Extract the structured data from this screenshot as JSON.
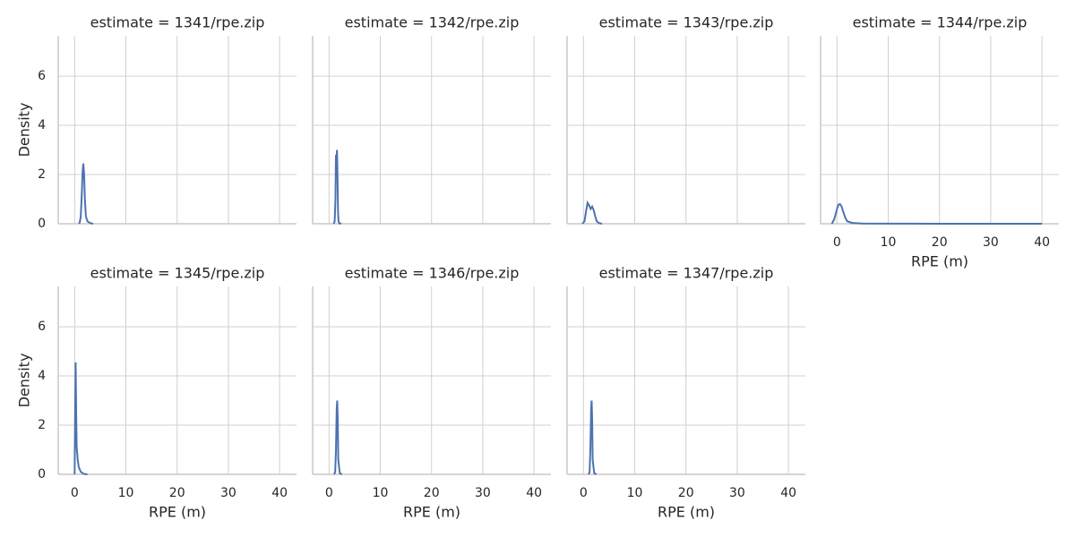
{
  "chart_data": [
    {
      "type": "line",
      "title": "estimate = 1341/rpe.zip",
      "ylabel": "Density",
      "color": "#4c72b0",
      "x": [
        0.8,
        1.0,
        1.2,
        1.4,
        1.55,
        1.7,
        1.85,
        2.0,
        2.2,
        2.5,
        3.0,
        3.6
      ],
      "values": [
        0,
        0.05,
        0.3,
        1.2,
        2.1,
        2.45,
        2.0,
        1.0,
        0.3,
        0.1,
        0.03,
        0
      ],
      "xlim": [
        -3.2,
        43.3
      ],
      "ylim": [
        0,
        7.64
      ],
      "xticks": [
        0,
        10,
        20,
        30,
        40
      ],
      "yticks": [
        0,
        2,
        4,
        6
      ],
      "grid": true
    },
    {
      "type": "line",
      "title": "estimate = 1342/rpe.zip",
      "color": "#4c72b0",
      "x": [
        0.9,
        1.1,
        1.25,
        1.35,
        1.45,
        1.55,
        1.65,
        1.75,
        1.85,
        2.0,
        2.4
      ],
      "values": [
        0,
        0.1,
        1.0,
        2.8,
        2.6,
        3.0,
        2.0,
        0.5,
        0.1,
        0.02,
        0
      ],
      "xlim": [
        -3.2,
        43.3
      ],
      "ylim": [
        0,
        7.64
      ],
      "xticks": [
        0,
        10,
        20,
        30,
        40
      ],
      "yticks": [
        0,
        2,
        4,
        6
      ],
      "grid": true
    },
    {
      "type": "line",
      "title": "estimate = 1343/rpe.zip",
      "color": "#4c72b0",
      "x": [
        -0.2,
        0.2,
        0.5,
        0.8,
        1.1,
        1.4,
        1.7,
        2.0,
        2.3,
        2.6,
        3.0,
        3.6
      ],
      "values": [
        0,
        0.1,
        0.5,
        0.85,
        0.75,
        0.6,
        0.7,
        0.55,
        0.3,
        0.1,
        0.03,
        0
      ],
      "xlim": [
        -3.2,
        43.3
      ],
      "ylim": [
        0,
        7.64
      ],
      "xticks": [
        0,
        10,
        20,
        30,
        40
      ],
      "yticks": [
        0,
        2,
        4,
        6
      ],
      "grid": true
    },
    {
      "type": "line",
      "title": "estimate = 1344/rpe.zip",
      "xlabel": "RPE (m)",
      "color": "#4c72b0",
      "x": [
        -1,
        -0.5,
        0,
        0.3,
        0.6,
        0.9,
        1.2,
        1.6,
        2.0,
        3,
        5,
        10,
        20,
        40
      ],
      "values": [
        0,
        0.2,
        0.6,
        0.78,
        0.8,
        0.7,
        0.5,
        0.25,
        0.1,
        0.03,
        0.01,
        0.005,
        0.002,
        0
      ],
      "xlim": [
        -3.2,
        43.3
      ],
      "ylim": [
        0,
        7.64
      ],
      "xticks": [
        0,
        10,
        20,
        30,
        40
      ],
      "yticks": [
        0,
        2,
        4,
        6
      ],
      "grid": true
    },
    {
      "type": "line",
      "title": "estimate = 1345/rpe.zip",
      "xlabel": "RPE (m)",
      "ylabel": "Density",
      "color": "#4c72b0",
      "x": [
        0,
        0.1,
        0.2,
        0.3,
        0.4,
        0.6,
        0.8,
        1.2,
        1.8,
        2.5
      ],
      "values": [
        0,
        2.5,
        4.55,
        2.5,
        1.1,
        0.6,
        0.3,
        0.1,
        0.02,
        0
      ],
      "xlim": [
        -3.2,
        43.3
      ],
      "ylim": [
        0,
        7.64
      ],
      "xticks": [
        0,
        10,
        20,
        30,
        40
      ],
      "yticks": [
        0,
        2,
        4,
        6
      ],
      "grid": true
    },
    {
      "type": "line",
      "title": "estimate = 1346/rpe.zip",
      "xlabel": "RPE (m)",
      "color": "#4c72b0",
      "x": [
        1.0,
        1.2,
        1.35,
        1.5,
        1.6,
        1.7,
        1.8,
        1.9,
        2.1,
        2.5
      ],
      "values": [
        0,
        0.1,
        1.0,
        2.7,
        3.0,
        2.2,
        0.6,
        0.4,
        0.05,
        0
      ],
      "xlim": [
        -3.2,
        43.3
      ],
      "ylim": [
        0,
        7.64
      ],
      "xticks": [
        0,
        10,
        20,
        30,
        40
      ],
      "yticks": [
        0,
        2,
        4,
        6
      ],
      "grid": true
    },
    {
      "type": "line",
      "title": "estimate = 1347/rpe.zip",
      "xlabel": "RPE (m)",
      "color": "#4c72b0",
      "x": [
        1.0,
        1.2,
        1.35,
        1.5,
        1.6,
        1.7,
        1.8,
        1.9,
        2.1,
        2.5
      ],
      "values": [
        0,
        0.1,
        1.0,
        2.7,
        3.0,
        2.2,
        0.6,
        0.4,
        0.05,
        0
      ],
      "xlim": [
        -3.2,
        43.3
      ],
      "ylim": [
        0,
        7.64
      ],
      "xticks": [
        0,
        10,
        20,
        30,
        40
      ],
      "yticks": [
        0,
        2,
        4,
        6
      ],
      "grid": true
    }
  ]
}
